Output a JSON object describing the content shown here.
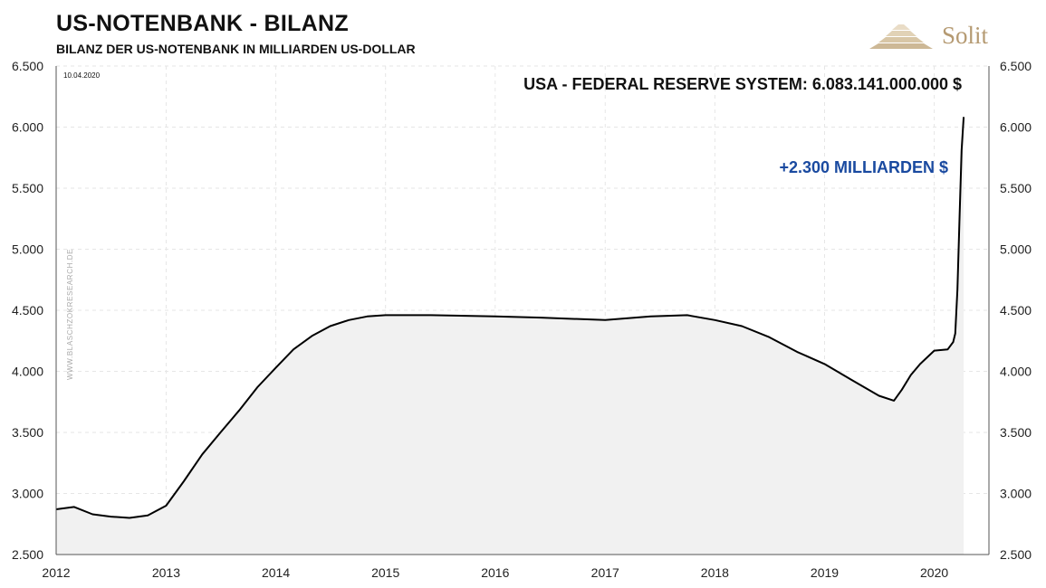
{
  "header": {
    "title": "US-NOTENBANK - BILANZ",
    "subtitle": "BILANZ DER US-NOTENBANK IN MILLIARDEN US-DOLLAR",
    "logo_text": "Solit"
  },
  "annotations": {
    "date": "10.04.2020",
    "watermark": "WWW.BLASCHZOKRESEARCH.DE",
    "total": "USA - FEDERAL RESERVE SYSTEM: 6.083.141.000.000 $",
    "increase": "+2.300 MILLIARDEN $"
  },
  "colors": {
    "line": "#000000",
    "area": "#f1f1f1",
    "grid": "#e6e6e6",
    "increase_text": "#1a4aa0",
    "logo": "#b59a72"
  },
  "chart_data": {
    "type": "area",
    "title": "US-NOTENBANK - BILANZ",
    "subtitle": "BILANZ DER US-NOTENBANK IN MILLIARDEN US-DOLLAR",
    "xlabel": "",
    "ylabel": "",
    "x_ticks": [
      "2012",
      "2013",
      "2014",
      "2015",
      "2016",
      "2017",
      "2018",
      "2019",
      "2020"
    ],
    "y_ticks": [
      "2.500",
      "3.000",
      "3.500",
      "4.000",
      "4.500",
      "5.000",
      "5.500",
      "6.000",
      "6.500"
    ],
    "xlim": [
      "2012-01-01",
      "2020-07-01"
    ],
    "ylim": [
      2500,
      6500
    ],
    "grid": true,
    "series": [
      {
        "values": [
          [
            "2012-01-01",
            2870
          ],
          [
            "2012-03-01",
            2890
          ],
          [
            "2012-05-01",
            2830
          ],
          [
            "2012-07-01",
            2810
          ],
          [
            "2012-09-01",
            2800
          ],
          [
            "2012-11-01",
            2820
          ],
          [
            "2013-01-01",
            2900
          ],
          [
            "2013-03-01",
            3100
          ],
          [
            "2013-05-01",
            3320
          ],
          [
            "2013-07-01",
            3500
          ],
          [
            "2013-09-01",
            3680
          ],
          [
            "2013-11-01",
            3870
          ],
          [
            "2014-01-01",
            4030
          ],
          [
            "2014-03-01",
            4180
          ],
          [
            "2014-05-01",
            4290
          ],
          [
            "2014-07-01",
            4370
          ],
          [
            "2014-09-01",
            4420
          ],
          [
            "2014-11-01",
            4450
          ],
          [
            "2015-01-01",
            4460
          ],
          [
            "2015-06-01",
            4460
          ],
          [
            "2016-01-01",
            4450
          ],
          [
            "2016-06-01",
            4440
          ],
          [
            "2017-01-01",
            4420
          ],
          [
            "2017-06-01",
            4450
          ],
          [
            "2017-10-01",
            4460
          ],
          [
            "2018-01-01",
            4420
          ],
          [
            "2018-04-01",
            4370
          ],
          [
            "2018-07-01",
            4280
          ],
          [
            "2018-10-01",
            4160
          ],
          [
            "2019-01-01",
            4060
          ],
          [
            "2019-04-01",
            3930
          ],
          [
            "2019-07-01",
            3800
          ],
          [
            "2019-08-20",
            3760
          ],
          [
            "2019-09-15",
            3850
          ],
          [
            "2019-10-15",
            3970
          ],
          [
            "2019-11-15",
            4060
          ],
          [
            "2020-01-01",
            4170
          ],
          [
            "2020-02-15",
            4180
          ],
          [
            "2020-03-04",
            4240
          ],
          [
            "2020-03-11",
            4310
          ],
          [
            "2020-03-18",
            4670
          ],
          [
            "2020-03-25",
            5250
          ],
          [
            "2020-04-01",
            5810
          ],
          [
            "2020-04-08",
            6083
          ]
        ]
      }
    ]
  }
}
